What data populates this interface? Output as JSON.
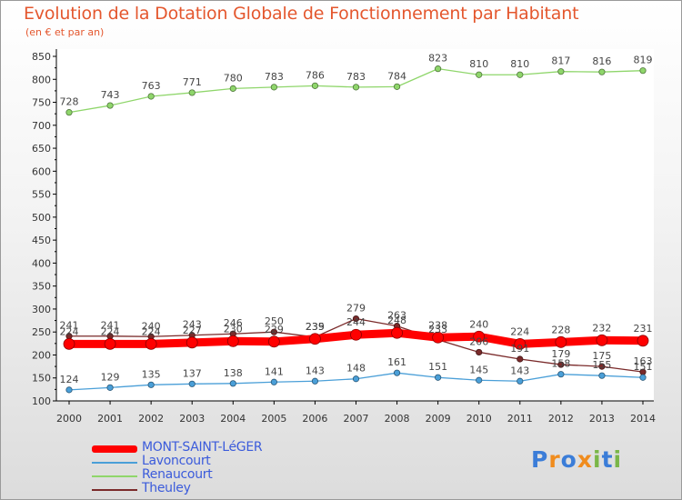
{
  "header": {
    "title": "Evolution de la Dotation Globale de Fonctionnement par Habitant",
    "subtitle": "(en € et par an)"
  },
  "logo": {
    "text": "Proxiti",
    "letters": [
      "P",
      "r",
      "o",
      "x",
      "i",
      "t",
      "i"
    ],
    "colors": [
      "#3b7dd8",
      "#f08c1e",
      "#3b7dd8",
      "#f08c1e",
      "#7ab648",
      "#3b7dd8",
      "#7ab648"
    ]
  },
  "chart_data": {
    "type": "line",
    "title": "Evolution de la Dotation Globale de Fonctionnement par Habitant",
    "subtitle": "(en € et par an)",
    "xlabel": "",
    "ylabel": "",
    "ylim": [
      100,
      850
    ],
    "yticks": [
      100,
      150,
      200,
      250,
      300,
      350,
      400,
      450,
      500,
      550,
      600,
      650,
      700,
      750,
      800,
      850
    ],
    "grid": false,
    "legend_position": "bottom-left",
    "categories": [
      "2000",
      "2001",
      "2002",
      "2003",
      "2004",
      "2005",
      "2006",
      "2007",
      "2008",
      "2009",
      "2010",
      "2011",
      "2012",
      "2013",
      "2014"
    ],
    "series": [
      {
        "name": "Renaucourt",
        "color": "#8fd66b",
        "values": [
          728,
          743,
          763,
          771,
          780,
          783,
          786,
          783,
          784,
          823,
          810,
          810,
          817,
          816,
          819
        ],
        "labels": [
          "728",
          "743",
          "763",
          "771",
          "780",
          "783",
          "786",
          "783",
          "784",
          "823",
          "810",
          "810",
          "817",
          "816",
          "819"
        ]
      },
      {
        "name": "Theuley",
        "color": "#7a2a2a",
        "values": [
          241,
          241,
          240,
          243,
          246,
          250,
          239,
          279,
          263,
          233,
          206,
          191,
          179,
          175,
          163
        ],
        "labels": [
          "241",
          "241",
          "240",
          "243",
          "246",
          "250",
          "239",
          "279",
          "263",
          "233",
          "206",
          "191",
          "179",
          "175",
          "163"
        ]
      },
      {
        "name": "MONT-SAINT-LéGER",
        "color": "#ff0000",
        "values": [
          224,
          224,
          224,
          227,
          230,
          229,
          235,
          244,
          248,
          238,
          240,
          224,
          228,
          232,
          231
        ],
        "labels": [
          "224",
          "224",
          "224",
          "227",
          "230",
          "229",
          "235",
          "244",
          "248",
          "238",
          "240",
          "224",
          "228",
          "232",
          "231"
        ]
      },
      {
        "name": "Lavoncourt",
        "color": "#4a9fd8",
        "values": [
          124,
          129,
          135,
          137,
          138,
          141,
          143,
          148,
          161,
          151,
          145,
          143,
          158,
          155,
          151
        ],
        "labels": [
          "124",
          "129",
          "135",
          "137",
          "138",
          "141",
          "143",
          "148",
          "161",
          "151",
          "145",
          "143",
          "158",
          "155",
          "151"
        ]
      }
    ],
    "legend": [
      {
        "name": "MONT-SAINT-LéGER",
        "color": "#ff0000"
      },
      {
        "name": "Lavoncourt",
        "color": "#4a9fd8"
      },
      {
        "name": "Renaucourt",
        "color": "#8fd66b"
      },
      {
        "name": "Theuley",
        "color": "#7a2a2a"
      }
    ]
  }
}
